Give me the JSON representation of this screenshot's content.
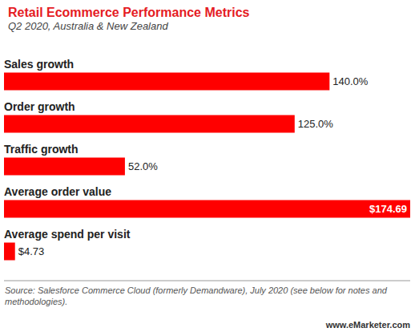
{
  "chart_data": {
    "type": "bar",
    "title": "Retail Ecommerce Performance Metrics",
    "subtitle": "Q2 2020, Australia & New Zealand",
    "categories": [
      "Sales growth",
      "Order growth",
      "Traffic growth",
      "Average order value",
      "Average spend per visit"
    ],
    "values": [
      140,
      125,
      52,
      174.69,
      4.73
    ],
    "value_labels": [
      "140.0%",
      "125.0%",
      "52.0%",
      "$174.69",
      "$4.73"
    ],
    "color": "#ff0000",
    "orientation": "horizontal",
    "data_labels": true,
    "tick_labels": "y",
    "grid": false,
    "source": "Source: Salesforce Commerce Cloud (formerly Demandware), July 2020 (see below for notes and methodologies).",
    "credit": "www.eMarketer.com"
  }
}
